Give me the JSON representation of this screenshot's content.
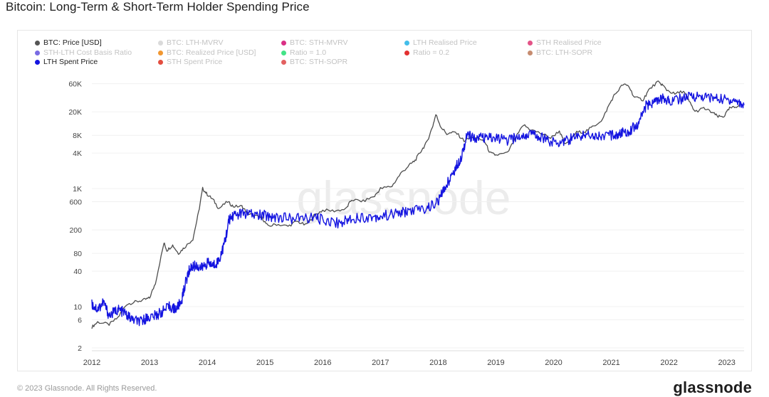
{
  "page": {
    "title": "Bitcoin: Long-Term & Short-Term Holder Spending Price",
    "copyright": "© 2023 Glassnode. All Rights Reserved.",
    "brand": "glassnode",
    "watermark": "glassnode"
  },
  "colors": {
    "btc_price": "#4d4d4d",
    "lth_spent": "#1414e0",
    "grid": "#f0f0f0",
    "axis_text": "#444444"
  },
  "legend": [
    {
      "label": "BTC: Price [USD]",
      "color": "#555555",
      "active": true
    },
    {
      "label": "BTC: LTH-MVRV",
      "color": "#d6d6d6",
      "active": false
    },
    {
      "label": "BTC: STH-MVRV",
      "color": "#d61a78",
      "active": false
    },
    {
      "label": "LTH Realised Price",
      "color": "#2fb7e8",
      "active": false
    },
    {
      "label": "STH Realised Price",
      "color": "#e0407a",
      "active": false
    },
    {
      "label": "STH-LTH Cost Basis Ratio",
      "color": "#6a5be0",
      "active": false
    },
    {
      "label": "BTC: Realized Price [USD]",
      "color": "#f08c1a",
      "active": false
    },
    {
      "label": "Ratio = 1.0",
      "color": "#2fe07a",
      "active": false
    },
    {
      "label": "Ratio = 0.2",
      "color": "#e01a1a",
      "active": false
    },
    {
      "label": "BTC: LTH-SOPR",
      "color": "#c08060",
      "active": false
    },
    {
      "label": "LTH Spent Price",
      "color": "#1414e0",
      "active": true
    },
    {
      "label": "STH Spent Price",
      "color": "#e03a2a",
      "active": false
    },
    {
      "label": "BTC: STH-SOPR",
      "color": "#e05050",
      "active": false
    }
  ],
  "chart_data": {
    "type": "line",
    "title": "Bitcoin: Long-Term & Short-Term Holder Spending Price",
    "yscale": "log",
    "ylim": [
      2,
      90000
    ],
    "xlim": [
      2012.0,
      2023.3
    ],
    "y_ticks": [
      2,
      6,
      10,
      40,
      80,
      200,
      600,
      "1K",
      "4K",
      "8K",
      "20K",
      "60K"
    ],
    "y_tick_values": [
      2,
      6,
      10,
      40,
      80,
      200,
      600,
      1000,
      4000,
      8000,
      20000,
      60000
    ],
    "x_ticks": [
      "2012",
      "2013",
      "2014",
      "2015",
      "2016",
      "2017",
      "2018",
      "2019",
      "2020",
      "2021",
      "2022",
      "2023"
    ],
    "x_tick_values": [
      2012,
      2013,
      2014,
      2015,
      2016,
      2017,
      2018,
      2019,
      2020,
      2021,
      2022,
      2023
    ],
    "grid": "horizontal",
    "legend_position": "top-left",
    "series": [
      {
        "name": "BTC: Price [USD]",
        "color": "#4d4d4d",
        "points": [
          [
            2012.0,
            4.5
          ],
          [
            2012.1,
            5.5
          ],
          [
            2012.3,
            5
          ],
          [
            2012.45,
            6.5
          ],
          [
            2012.6,
            11
          ],
          [
            2012.75,
            12
          ],
          [
            2012.9,
            13
          ],
          [
            2013.0,
            14
          ],
          [
            2013.1,
            25
          ],
          [
            2013.25,
            120
          ],
          [
            2013.3,
            90
          ],
          [
            2013.4,
            110
          ],
          [
            2013.5,
            80
          ],
          [
            2013.6,
            100
          ],
          [
            2013.75,
            140
          ],
          [
            2013.85,
            400
          ],
          [
            2013.92,
            1000
          ],
          [
            2014.0,
            800
          ],
          [
            2014.1,
            650
          ],
          [
            2014.2,
            460
          ],
          [
            2014.35,
            600
          ],
          [
            2014.45,
            500
          ],
          [
            2014.6,
            500
          ],
          [
            2014.7,
            380
          ],
          [
            2014.8,
            350
          ],
          [
            2014.95,
            320
          ],
          [
            2015.05,
            230
          ],
          [
            2015.2,
            250
          ],
          [
            2015.4,
            230
          ],
          [
            2015.55,
            280
          ],
          [
            2015.7,
            240
          ],
          [
            2015.85,
            350
          ],
          [
            2016.0,
            430
          ],
          [
            2016.2,
            420
          ],
          [
            2016.4,
            450
          ],
          [
            2016.5,
            650
          ],
          [
            2016.7,
            610
          ],
          [
            2016.9,
            750
          ],
          [
            2017.0,
            1000
          ],
          [
            2017.2,
            1100
          ],
          [
            2017.35,
            1800
          ],
          [
            2017.5,
            2500
          ],
          [
            2017.6,
            3000
          ],
          [
            2017.7,
            4300
          ],
          [
            2017.8,
            6000
          ],
          [
            2017.9,
            11000
          ],
          [
            2017.96,
            18000
          ],
          [
            2018.05,
            11000
          ],
          [
            2018.15,
            8500
          ],
          [
            2018.3,
            9000
          ],
          [
            2018.45,
            6500
          ],
          [
            2018.6,
            7500
          ],
          [
            2018.8,
            6400
          ],
          [
            2018.9,
            4000
          ],
          [
            2019.0,
            3700
          ],
          [
            2019.2,
            4000
          ],
          [
            2019.35,
            7500
          ],
          [
            2019.48,
            12000
          ],
          [
            2019.6,
            10000
          ],
          [
            2019.8,
            8500
          ],
          [
            2019.95,
            7200
          ],
          [
            2020.1,
            9500
          ],
          [
            2020.2,
            5500
          ],
          [
            2020.4,
            9000
          ],
          [
            2020.55,
            9300
          ],
          [
            2020.7,
            11500
          ],
          [
            2020.85,
            15000
          ],
          [
            2020.95,
            25000
          ],
          [
            2021.05,
            38000
          ],
          [
            2021.2,
            58000
          ],
          [
            2021.3,
            55000
          ],
          [
            2021.4,
            35000
          ],
          [
            2021.55,
            32000
          ],
          [
            2021.65,
            47000
          ],
          [
            2021.8,
            64000
          ],
          [
            2021.88,
            58000
          ],
          [
            2021.96,
            47000
          ],
          [
            2022.1,
            40000
          ],
          [
            2022.25,
            45000
          ],
          [
            2022.35,
            30000
          ],
          [
            2022.45,
            20000
          ],
          [
            2022.6,
            23000
          ],
          [
            2022.75,
            19500
          ],
          [
            2022.85,
            16500
          ],
          [
            2022.95,
            16800
          ],
          [
            2023.05,
            23000
          ],
          [
            2023.15,
            24000
          ],
          [
            2023.25,
            28000
          ]
        ]
      },
      {
        "name": "LTH Spent Price",
        "color": "#1414e0",
        "points": [
          [
            2012.0,
            11
          ],
          [
            2012.1,
            9
          ],
          [
            2012.2,
            12
          ],
          [
            2012.3,
            7
          ],
          [
            2012.45,
            9
          ],
          [
            2012.55,
            8
          ],
          [
            2012.7,
            6
          ],
          [
            2012.85,
            5.5
          ],
          [
            2012.95,
            6.5
          ],
          [
            2013.1,
            7
          ],
          [
            2013.2,
            8
          ],
          [
            2013.35,
            10
          ],
          [
            2013.45,
            9
          ],
          [
            2013.55,
            12
          ],
          [
            2013.62,
            25
          ],
          [
            2013.7,
            45
          ],
          [
            2013.8,
            50
          ],
          [
            2013.9,
            45
          ],
          [
            2014.0,
            55
          ],
          [
            2014.1,
            50
          ],
          [
            2014.2,
            60
          ],
          [
            2014.3,
            120
          ],
          [
            2014.38,
            300
          ],
          [
            2014.45,
            350
          ],
          [
            2014.6,
            380
          ],
          [
            2014.8,
            360
          ],
          [
            2015.0,
            350
          ],
          [
            2015.2,
            330
          ],
          [
            2015.5,
            310
          ],
          [
            2015.8,
            320
          ],
          [
            2016.0,
            300
          ],
          [
            2016.3,
            260
          ],
          [
            2016.5,
            320
          ],
          [
            2016.8,
            330
          ],
          [
            2017.0,
            340
          ],
          [
            2017.3,
            380
          ],
          [
            2017.5,
            420
          ],
          [
            2017.8,
            460
          ],
          [
            2018.0,
            600
          ],
          [
            2018.15,
            1200
          ],
          [
            2018.3,
            2200
          ],
          [
            2018.4,
            3500
          ],
          [
            2018.5,
            8000
          ],
          [
            2018.6,
            7500
          ],
          [
            2018.8,
            7000
          ],
          [
            2019.0,
            7200
          ],
          [
            2019.2,
            6500
          ],
          [
            2019.4,
            7500
          ],
          [
            2019.6,
            8500
          ],
          [
            2019.8,
            7500
          ],
          [
            2020.0,
            6000
          ],
          [
            2020.2,
            6500
          ],
          [
            2020.4,
            7500
          ],
          [
            2020.6,
            8500
          ],
          [
            2020.8,
            7800
          ],
          [
            2021.0,
            8000
          ],
          [
            2021.15,
            8500
          ],
          [
            2021.3,
            9500
          ],
          [
            2021.45,
            12000
          ],
          [
            2021.6,
            25000
          ],
          [
            2021.75,
            30000
          ],
          [
            2021.9,
            33000
          ],
          [
            2022.0,
            31000
          ],
          [
            2022.2,
            33000
          ],
          [
            2022.4,
            37000
          ],
          [
            2022.6,
            36000
          ],
          [
            2022.8,
            34000
          ],
          [
            2023.0,
            32000
          ],
          [
            2023.15,
            31000
          ],
          [
            2023.3,
            26000
          ]
        ]
      }
    ]
  }
}
